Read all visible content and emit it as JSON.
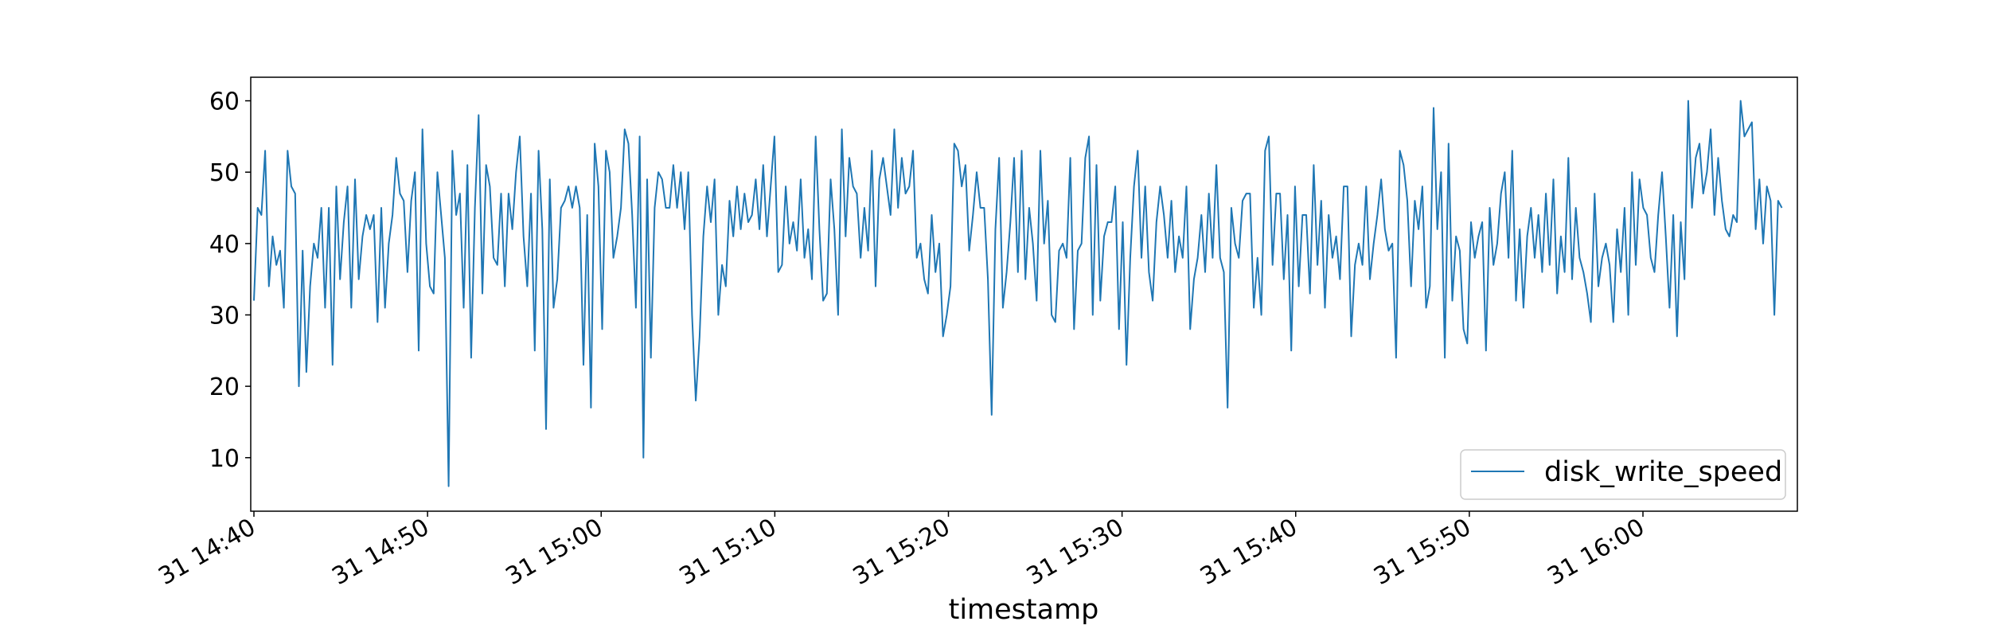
{
  "chart_data": {
    "type": "line",
    "title": "",
    "xlabel": "timestamp",
    "ylabel": "",
    "x_start": "31 14:40",
    "x_end": "31 16:08",
    "x_ticks": [
      "31 14:40",
      "31 14:50",
      "31 15:00",
      "31 15:10",
      "31 15:20",
      "31 15:30",
      "31 15:40",
      "31 15:50",
      "31 16:00"
    ],
    "ylim": [
      2.5,
      63.3
    ],
    "y_ticks": [
      10,
      20,
      30,
      40,
      50,
      60
    ],
    "grid": false,
    "legend_position": "lower-right",
    "series": [
      {
        "name": "disk_write_speed",
        "color": "#1f77b4",
        "values": [
          32,
          45,
          44,
          53,
          34,
          41,
          37,
          39,
          31,
          53,
          48,
          47,
          20,
          39,
          22,
          34,
          40,
          38,
          45,
          31,
          45,
          23,
          48,
          35,
          43,
          48,
          31,
          49,
          35,
          41,
          44,
          42,
          44,
          29,
          45,
          31,
          40,
          44,
          52,
          47,
          46,
          36,
          46,
          50,
          25,
          56,
          40,
          34,
          33,
          50,
          44,
          38,
          6,
          53,
          44,
          47,
          31,
          51,
          24,
          45,
          58,
          33,
          51,
          48,
          38,
          37,
          47,
          34,
          47,
          42,
          50,
          55,
          41,
          34,
          47,
          25,
          53,
          42,
          14,
          49,
          31,
          35,
          45,
          46,
          48,
          45,
          48,
          45,
          23,
          44,
          17,
          54,
          48,
          28,
          53,
          50,
          38,
          41,
          45,
          56,
          54,
          44,
          31,
          55,
          10,
          49,
          24,
          45,
          50,
          49,
          45,
          45,
          51,
          45,
          50,
          42,
          50,
          30,
          18,
          27,
          41,
          48,
          43,
          49,
          30,
          37,
          34,
          46,
          41,
          48,
          42,
          47,
          43,
          44,
          49,
          42,
          51,
          41,
          48,
          55,
          36,
          37,
          48,
          40,
          43,
          39,
          49,
          38,
          42,
          35,
          55,
          42,
          32,
          33,
          49,
          42,
          30,
          56,
          41,
          52,
          48,
          47,
          38,
          45,
          39,
          53,
          34,
          49,
          52,
          48,
          44,
          56,
          45,
          52,
          47,
          48,
          53,
          38,
          40,
          35,
          33,
          44,
          36,
          40,
          27,
          30,
          34,
          54,
          53,
          48,
          51,
          39,
          44,
          50,
          45,
          45,
          35,
          16,
          42,
          52,
          31,
          36,
          43,
          52,
          36,
          53,
          35,
          45,
          40,
          32,
          53,
          40,
          46,
          30,
          29,
          39,
          40,
          38,
          52,
          28,
          39,
          40,
          52,
          55,
          30,
          51,
          32,
          41,
          43,
          43,
          48,
          28,
          43,
          23,
          38,
          48,
          53,
          38,
          48,
          36,
          32,
          43,
          48,
          44,
          38,
          46,
          36,
          41,
          38,
          48,
          28,
          35,
          38,
          44,
          36,
          47,
          38,
          51,
          38,
          36,
          17,
          45,
          40,
          38,
          46,
          47,
          47,
          31,
          38,
          30,
          53,
          55,
          37,
          47,
          47,
          35,
          44,
          25,
          48,
          34,
          44,
          44,
          33,
          51,
          37,
          46,
          31,
          44,
          38,
          41,
          35,
          48,
          48,
          27,
          37,
          40,
          37,
          48,
          35,
          40,
          44,
          49,
          42,
          39,
          40,
          24,
          53,
          51,
          46,
          34,
          46,
          42,
          48,
          31,
          34,
          59,
          42,
          50,
          24,
          54,
          32,
          41,
          39,
          28,
          26,
          43,
          38,
          41,
          43,
          25,
          45,
          37,
          40,
          47,
          50,
          38,
          53,
          32,
          42,
          31,
          41,
          45,
          38,
          44,
          36,
          47,
          37,
          49,
          33,
          41,
          36,
          52,
          35,
          45,
          38,
          36,
          33,
          29,
          47,
          34,
          38,
          40,
          37,
          29,
          42,
          36,
          45,
          30,
          50,
          37,
          49,
          45,
          44,
          38,
          36,
          44,
          50,
          41,
          31,
          44,
          27,
          43,
          35,
          60,
          45,
          52,
          54,
          47,
          50,
          56,
          44,
          52,
          46,
          42,
          41,
          44,
          43,
          60,
          55,
          56,
          57,
          42,
          49,
          40,
          48,
          46,
          30,
          46,
          45
        ]
      }
    ]
  }
}
